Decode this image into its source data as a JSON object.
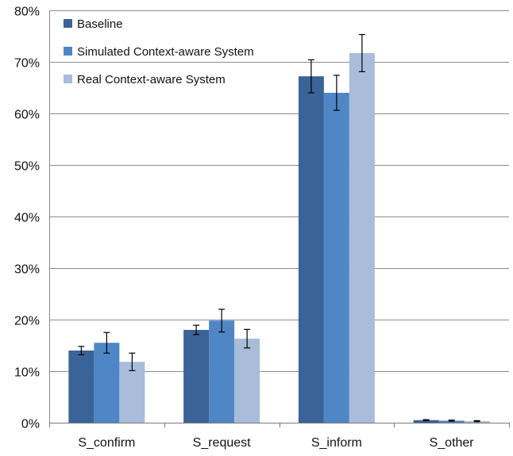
{
  "chart_data": {
    "type": "bar",
    "title": "",
    "xlabel": "",
    "ylabel": "",
    "categories": [
      "S_confirm",
      "S_request",
      "S_inform",
      "S_other"
    ],
    "series": [
      {
        "name": "Baseline",
        "values": [
          14.0,
          18.0,
          67.2,
          0.5
        ],
        "error": [
          0.8,
          0.9,
          3.2,
          0.1
        ],
        "color": "#3a6497"
      },
      {
        "name": "Simulated Context-aware System",
        "values": [
          15.5,
          19.8,
          64.0,
          0.4
        ],
        "error": [
          2.0,
          2.2,
          3.4,
          0.1
        ],
        "color": "#4f86c6"
      },
      {
        "name": "Real Context-aware System",
        "values": [
          11.8,
          16.3,
          71.7,
          0.3
        ],
        "error": [
          1.7,
          1.8,
          3.6,
          0.1
        ],
        "color": "#a9bcd9"
      }
    ],
    "ylim": [
      0,
      80
    ],
    "yticks": [
      0,
      10,
      20,
      30,
      40,
      50,
      60,
      70,
      80
    ],
    "ytick_labels": [
      "0%",
      "10%",
      "20%",
      "30%",
      "40%",
      "50%",
      "60%",
      "70%",
      "80%"
    ],
    "grid": true,
    "legend_position": "top-left"
  }
}
